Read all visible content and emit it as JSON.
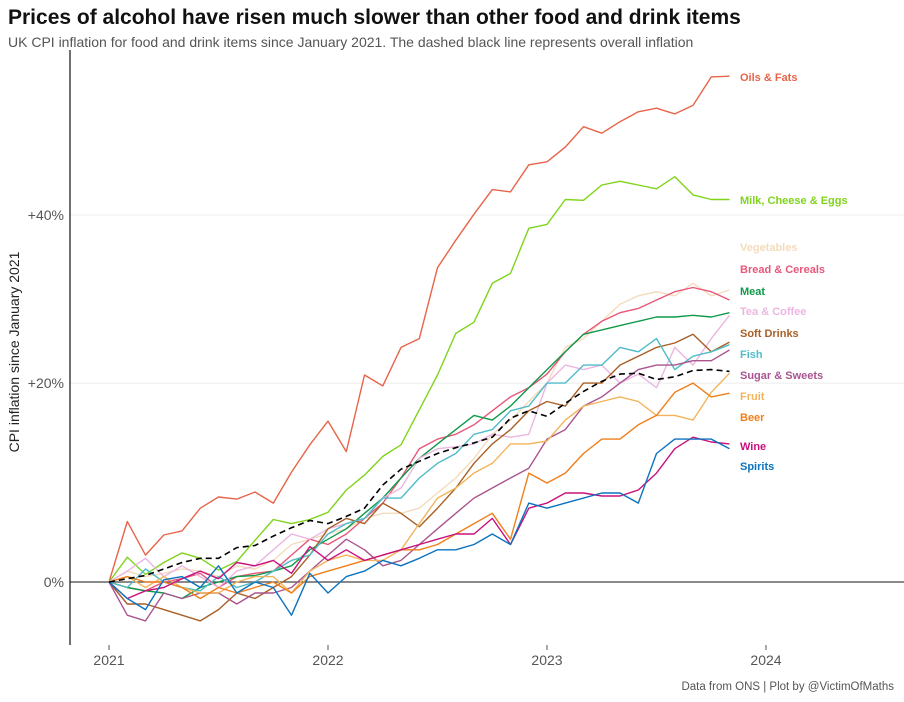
{
  "title": "Prices of alcohol have risen much slower than other food and drink items",
  "subtitle": "UK CPI inflation for food and drink items since January 2021. The dashed black line represents overall inflation",
  "caption": "Data from ONS | Plot by @VictimOfMaths",
  "chart_data": {
    "type": "line",
    "title": "Prices of alcohol have risen much slower than other food and drink items",
    "xlabel": "",
    "ylabel": "CPI inflation since January 2021",
    "y_scale": "log(1+x)",
    "ylim": [
      -5,
      62
    ],
    "x_start": "2021-01",
    "x_step": "month",
    "x_ticks": [
      "2021",
      "2022",
      "2023",
      "2024"
    ],
    "y_ticks": [
      {
        "value": 0,
        "label": "0%"
      },
      {
        "value": 20,
        "label": "+20%"
      },
      {
        "value": 40,
        "label": "+40%"
      }
    ],
    "grid": "horizontal major",
    "legend": "direct labels at line ends (right)",
    "overall": {
      "name": "Overall inflation",
      "color": "#000000",
      "values": [
        0,
        0.3,
        0.6,
        1.2,
        1.8,
        2.2,
        2.2,
        3.2,
        3.4,
        4.3,
        5.1,
        5.8,
        5.5,
        6.2,
        7,
        9.3,
        10.9,
        11.7,
        12.5,
        13.1,
        13.6,
        14.2,
        16.2,
        17,
        16.4,
        17.8,
        19.1,
        20.2,
        21,
        21.1,
        20.4,
        20.7,
        21.4,
        21.5,
        21.3
      ]
    },
    "series": [
      {
        "name": "Oils & Fats",
        "color": "#e8644a",
        "values": [
          0,
          5.7,
          2.5,
          4.4,
          4.8,
          7.0,
          8.1,
          7.9,
          8.6,
          7.5,
          10.6,
          13.4,
          15.9,
          12.7,
          20.9,
          19.7,
          24.0,
          25.0,
          33.4,
          36.8,
          40.1,
          43.3,
          43.0,
          46.6,
          47.0,
          49.0,
          51.8,
          50.9,
          52.5,
          53.9,
          54.4,
          53.6,
          54.8,
          58.9,
          59.0
        ]
      },
      {
        "name": "Milk, Cheese & Eggs",
        "color": "#7fd41b",
        "values": [
          0,
          2.3,
          0.7,
          1.8,
          2.7,
          2.2,
          1.1,
          1.9,
          3.9,
          5.9,
          5.5,
          5.9,
          6.6,
          8.8,
          10.3,
          12.2,
          13.4,
          17.1,
          20.9,
          25.6,
          26.9,
          31.5,
          32.7,
          38.3,
          38.8,
          42,
          41.9,
          43.9,
          44.4,
          43.9,
          43.4,
          45,
          42.6,
          42,
          42
        ]
      },
      {
        "name": "Vegetables",
        "color": "#f3dcbc",
        "values": [
          0,
          1,
          0.5,
          0.8,
          1.2,
          1,
          0.5,
          1.5,
          1.2,
          2,
          3.5,
          4,
          4.5,
          5,
          6,
          6.5,
          6.5,
          7,
          8.5,
          10,
          12,
          14.5,
          16,
          18,
          20,
          24,
          25,
          27,
          29,
          30,
          30.5,
          30,
          31.5,
          30,
          30.7
        ]
      },
      {
        "name": "Bread & Cereals",
        "color": "#e8577a",
        "values": [
          0,
          -0.5,
          -0.8,
          0,
          0.3,
          0.8,
          -0.5,
          0.5,
          0.8,
          1,
          2.5,
          4,
          3.5,
          4.5,
          6,
          7.5,
          10,
          13,
          14,
          14.5,
          15.5,
          17,
          18.5,
          19.5,
          21,
          23.5,
          25.5,
          27,
          28,
          28.5,
          29.5,
          30.5,
          31,
          30.5,
          29.5
        ]
      },
      {
        "name": "Meat",
        "color": "#0f9a48",
        "values": [
          0,
          -0.5,
          -0.8,
          -1,
          -1.5,
          -0.5,
          0,
          0.5,
          0.6,
          1,
          1.5,
          3,
          4,
          5,
          6.5,
          8,
          10,
          12,
          13.5,
          15,
          16.5,
          16,
          17.5,
          19.5,
          21.5,
          23.5,
          25.5,
          26,
          26.5,
          27,
          27.5,
          27.5,
          27.7,
          27.5,
          28
        ]
      },
      {
        "name": "Tea & Coffee",
        "color": "#ebb6e1",
        "values": [
          0,
          1,
          2.2,
          0.5,
          1.5,
          0.5,
          -0.5,
          1,
          1.5,
          3,
          4.5,
          4,
          5,
          5.5,
          6,
          8,
          9,
          12,
          13,
          13.2,
          13.5,
          14.5,
          14.2,
          14.5,
          20,
          22,
          21.5,
          22,
          20,
          21,
          19.5,
          24,
          22,
          25,
          27.7
        ]
      },
      {
        "name": "Soft Drinks",
        "color": "#a95f26",
        "values": [
          0,
          -2,
          -2,
          -2.5,
          -3,
          -3.5,
          -2.5,
          -1,
          -1.5,
          -0.5,
          0.5,
          2.5,
          5,
          6,
          5.5,
          7.5,
          6.5,
          5.2,
          7,
          9,
          11.5,
          13.5,
          15,
          17,
          18,
          17.5,
          20,
          20,
          22,
          23,
          24,
          24.5,
          25.5,
          23.5,
          24.6
        ]
      },
      {
        "name": "Fish",
        "color": "#4fbcc9",
        "values": [
          0,
          -0.5,
          1.2,
          0,
          -0.5,
          -0.8,
          0.5,
          -0.5,
          0,
          1,
          2,
          2.5,
          4.5,
          5.5,
          6,
          8,
          8,
          10,
          11.5,
          12.5,
          14.5,
          15,
          17,
          17.5,
          20,
          20,
          22,
          22,
          24,
          23.5,
          25,
          21.5,
          23,
          23.5,
          24.3
        ]
      },
      {
        "name": "Sugar & Sweets",
        "color": "#a9558f",
        "values": [
          0,
          -3,
          -3.5,
          -1,
          -1.5,
          -1,
          -1,
          -2,
          -1,
          -1,
          -0.5,
          1,
          2.5,
          4,
          3,
          1.5,
          2,
          3.5,
          5,
          6.5,
          8,
          9,
          10,
          11,
          14,
          15,
          17.5,
          18.5,
          20,
          21.5,
          22,
          22,
          22.5,
          22.5,
          23.7
        ]
      },
      {
        "name": "Fruit",
        "color": "#f2b45a",
        "values": [
          0,
          0.5,
          -0.5,
          0.5,
          -0.5,
          -1,
          -1,
          0,
          0.5,
          0.5,
          -1,
          1,
          2,
          2.5,
          2,
          2,
          3,
          5.5,
          8,
          9,
          10.5,
          11.5,
          13.5,
          13.5,
          13.8,
          16,
          17.5,
          18,
          18.5,
          18,
          16.5,
          16.5,
          16,
          19,
          21.1
        ]
      },
      {
        "name": "Beer",
        "color": "#ef7f1a",
        "values": [
          0,
          0.5,
          0,
          0,
          -0.5,
          -1.5,
          -0.5,
          -1,
          -0.5,
          0,
          -1,
          0.5,
          1,
          1.5,
          2,
          2.5,
          3,
          3,
          3.5,
          4.5,
          5.5,
          6.5,
          4,
          10.5,
          9.5,
          10.5,
          12.5,
          14,
          14,
          15.5,
          16.5,
          19,
          20,
          18.5,
          18.9
        ]
      },
      {
        "name": "Wine",
        "color": "#c8127d",
        "values": [
          0,
          -1.5,
          -0.8,
          -0.5,
          0.3,
          1,
          0.3,
          1.8,
          1.5,
          2,
          0.8,
          3.3,
          2,
          3,
          2,
          2.5,
          3,
          3.5,
          4,
          4.5,
          4.5,
          6,
          3.5,
          7,
          7.5,
          8.5,
          8.5,
          8.2,
          8.2,
          8.8,
          10.5,
          13,
          14.2,
          13.7,
          13.5
        ]
      },
      {
        "name": "Spirits",
        "color": "#0c73bf",
        "values": [
          0,
          -1.5,
          -2.5,
          0.2,
          0.5,
          -0.5,
          1.5,
          -1,
          0,
          -0.5,
          -3,
          0.8,
          -1,
          0.5,
          1,
          2,
          1.5,
          2.2,
          3,
          3,
          3.5,
          4.5,
          3.5,
          7.5,
          7,
          7.5,
          8,
          8.5,
          8.5,
          7.5,
          12.5,
          14,
          14,
          14,
          13
        ]
      }
    ]
  }
}
